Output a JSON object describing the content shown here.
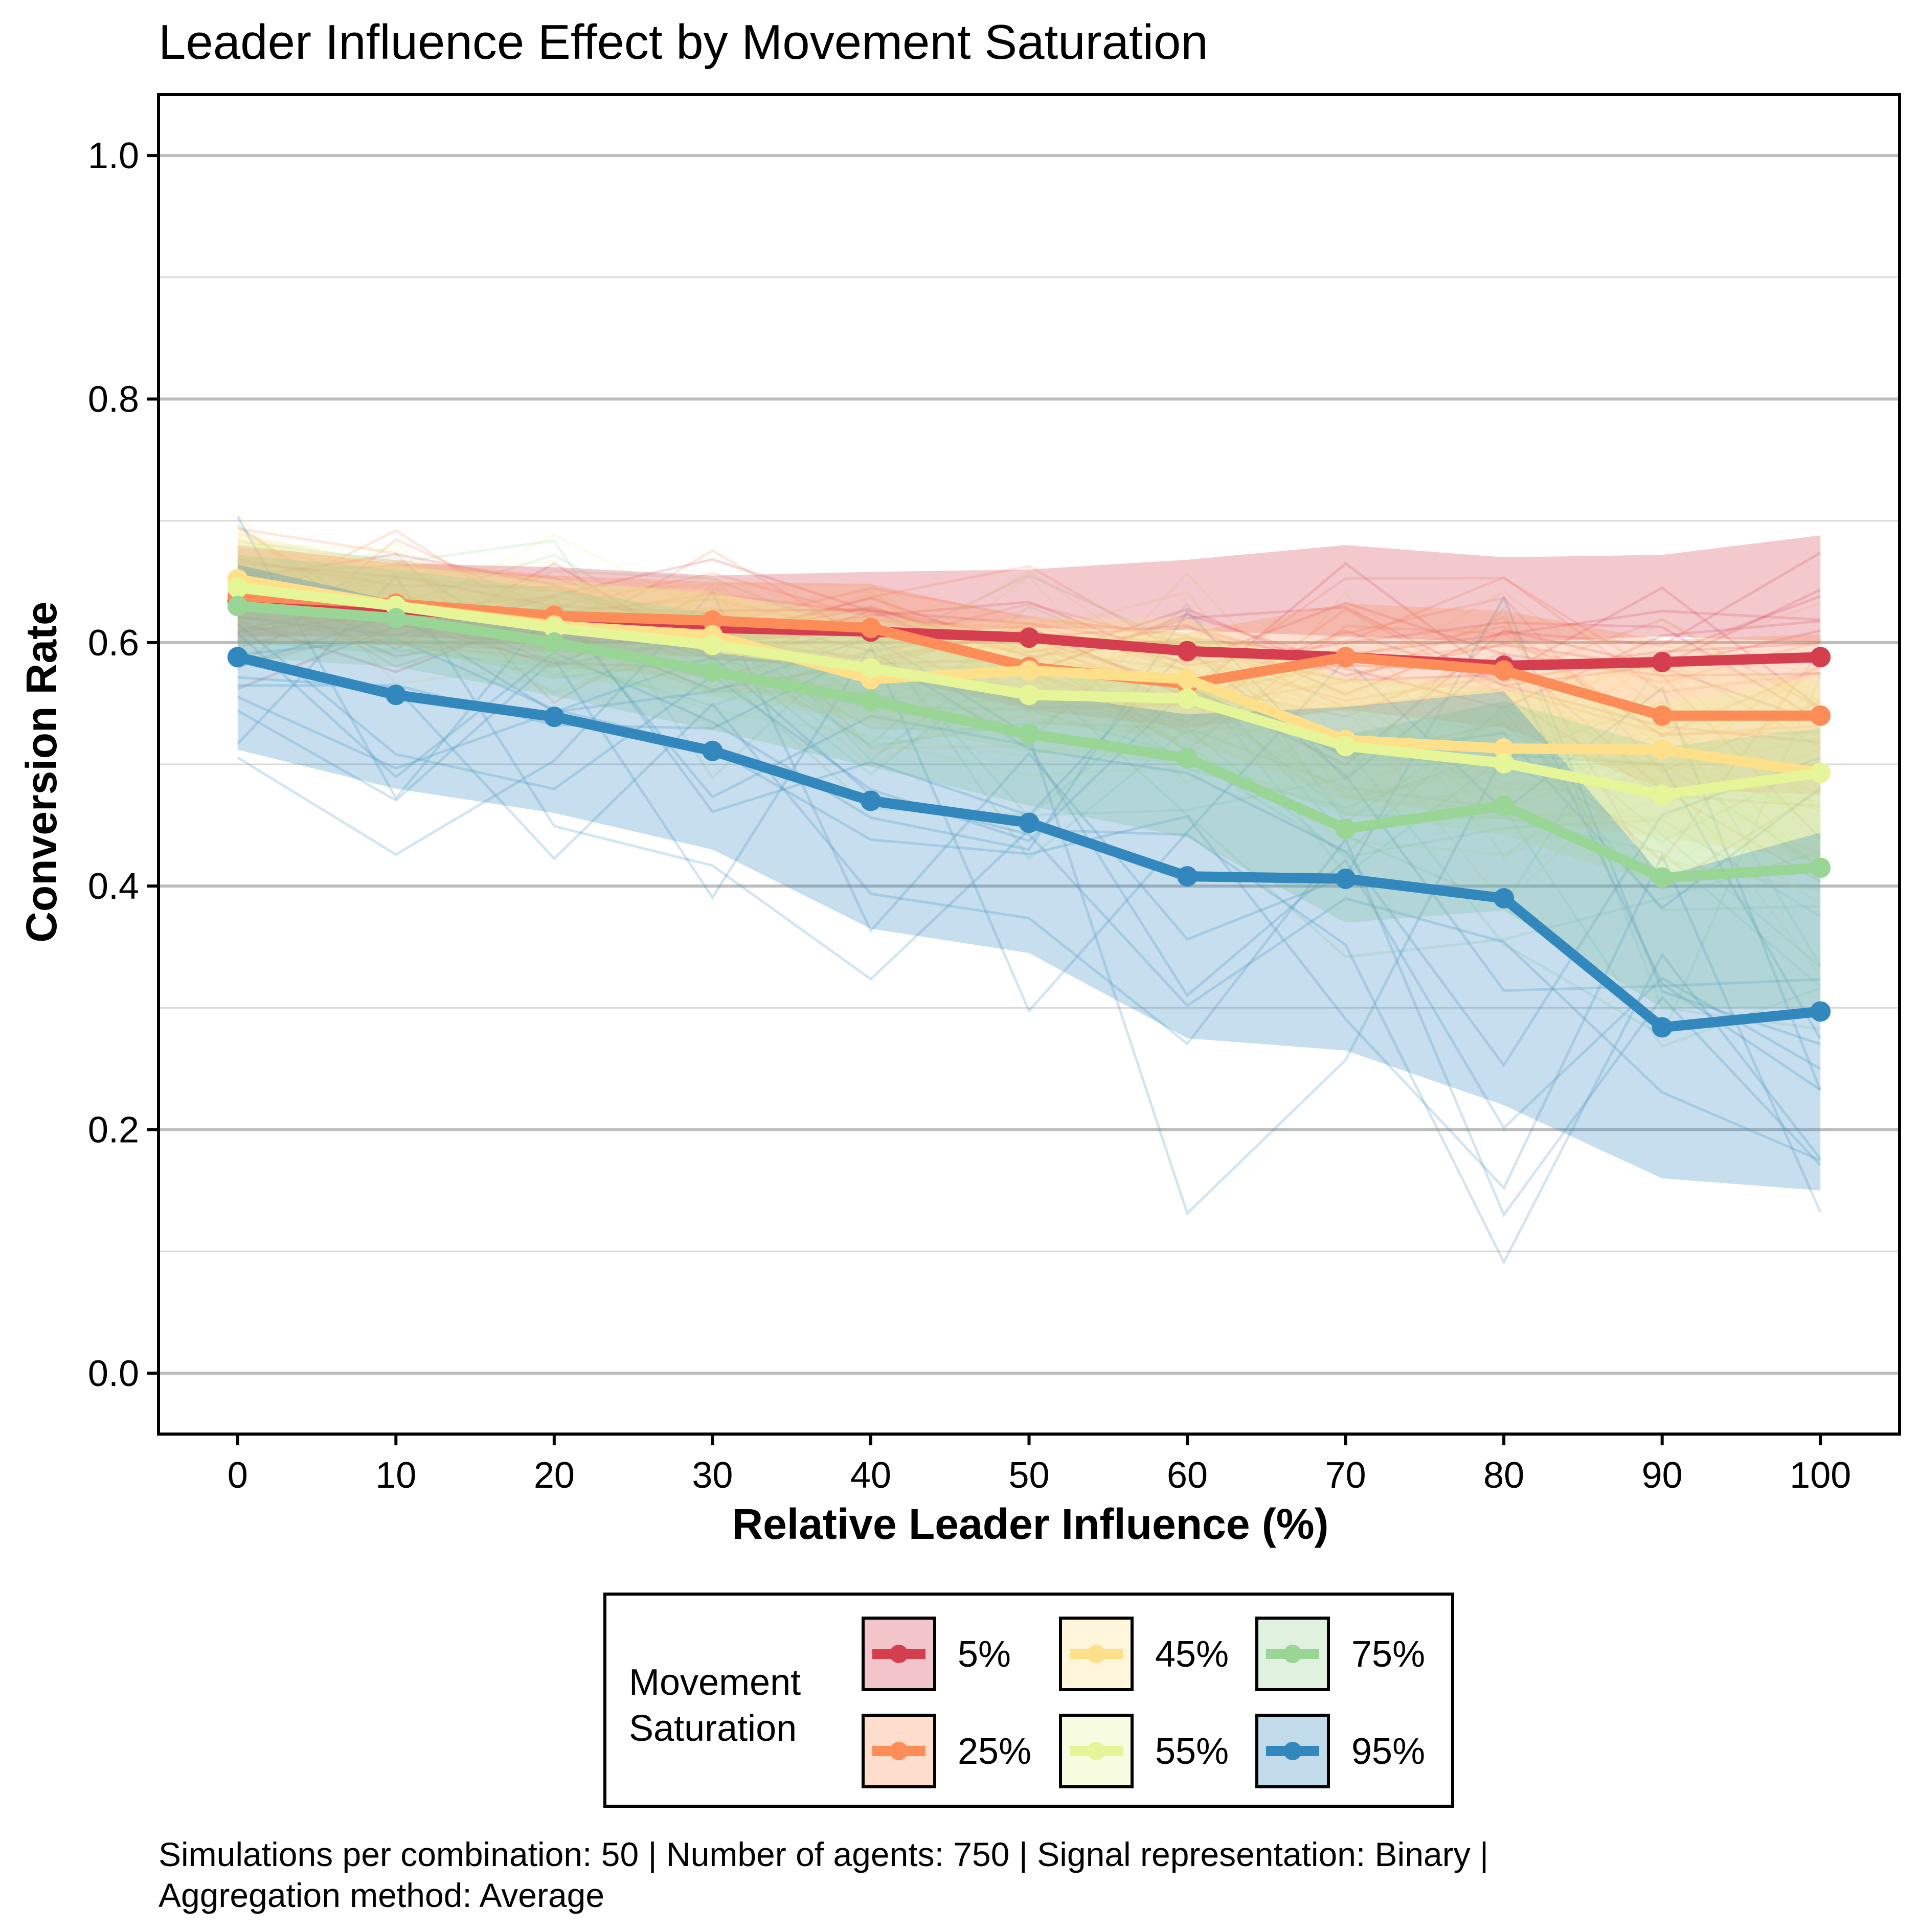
{
  "chart_data": {
    "type": "line",
    "title": "Leader Influence Effect by Movement Saturation",
    "xlabel": "Relative Leader Influence (%)",
    "ylabel": "Conversion Rate",
    "x": [
      0,
      10,
      20,
      30,
      40,
      50,
      60,
      70,
      80,
      90,
      100
    ],
    "xlim": [
      -5,
      105
    ],
    "ylim": [
      -0.05,
      1.05
    ],
    "y_major_ticks": [
      0.0,
      0.2,
      0.4,
      0.6,
      0.8,
      1.0
    ],
    "y_tick_labels": [
      "0.0",
      "0.2",
      "0.4",
      "0.6",
      "0.8",
      "1.0"
    ],
    "y_minor_ticks": [
      0.1,
      0.3,
      0.5,
      0.7,
      0.9
    ],
    "x_tick_labels": [
      "0",
      "10",
      "20",
      "30",
      "40",
      "50",
      "60",
      "70",
      "80",
      "90",
      "100"
    ],
    "grid": "horizontal",
    "legend": {
      "title_lines": [
        "Movement",
        "Saturation"
      ],
      "placement": "bottom"
    },
    "series": [
      {
        "name": "5%",
        "color": "#d53e4f",
        "values": [
          0.634,
          0.628,
          0.616,
          0.612,
          0.609,
          0.604,
          0.593,
          0.588,
          0.581,
          0.584,
          0.588
        ],
        "band_lower": [
          0.605,
          0.605,
          0.6,
          0.6,
          0.608,
          0.612,
          0.61,
          0.605,
          0.6,
          0.605,
          0.6
        ],
        "band_upper": [
          0.68,
          0.665,
          0.662,
          0.655,
          0.658,
          0.66,
          0.668,
          0.68,
          0.67,
          0.672,
          0.688
        ]
      },
      {
        "name": "25%",
        "color": "#fc8d59",
        "values": [
          0.638,
          0.632,
          0.622,
          0.618,
          0.612,
          0.58,
          0.566,
          0.588,
          0.577,
          0.54,
          0.54
        ],
        "band_lower": [
          0.6,
          0.598,
          0.592,
          0.588,
          0.575,
          0.545,
          0.53,
          0.545,
          0.53,
          0.48,
          0.475
        ],
        "band_upper": [
          0.676,
          0.668,
          0.655,
          0.65,
          0.648,
          0.62,
          0.608,
          0.632,
          0.626,
          0.602,
          0.607
        ]
      },
      {
        "name": "45%",
        "color": "#fee08b",
        "values": [
          0.652,
          0.63,
          0.614,
          0.606,
          0.57,
          0.577,
          0.57,
          0.52,
          0.513,
          0.512,
          0.493
        ],
        "band_lower": [
          0.615,
          0.598,
          0.58,
          0.57,
          0.53,
          0.535,
          0.52,
          0.472,
          0.455,
          0.44,
          0.42
        ],
        "band_upper": [
          0.69,
          0.664,
          0.648,
          0.643,
          0.61,
          0.62,
          0.62,
          0.57,
          0.572,
          0.586,
          0.568
        ]
      },
      {
        "name": "55%",
        "color": "#e6f598",
        "values": [
          0.645,
          0.63,
          0.612,
          0.598,
          0.579,
          0.557,
          0.554,
          0.515,
          0.501,
          0.475,
          0.493
        ],
        "band_lower": [
          0.606,
          0.595,
          0.572,
          0.556,
          0.535,
          0.51,
          0.5,
          0.46,
          0.442,
          0.4,
          0.415
        ],
        "band_upper": [
          0.684,
          0.665,
          0.652,
          0.64,
          0.622,
          0.605,
          0.608,
          0.57,
          0.56,
          0.55,
          0.571
        ]
      },
      {
        "name": "75%",
        "color": "#99d594",
        "values": [
          0.63,
          0.62,
          0.6,
          0.576,
          0.552,
          0.525,
          0.505,
          0.447,
          0.466,
          0.407,
          0.415
        ],
        "band_lower": [
          0.588,
          0.58,
          0.556,
          0.528,
          0.498,
          0.466,
          0.44,
          0.37,
          0.38,
          0.3,
          0.3
        ],
        "band_upper": [
          0.672,
          0.66,
          0.644,
          0.624,
          0.606,
          0.584,
          0.57,
          0.524,
          0.552,
          0.514,
          0.53
        ]
      },
      {
        "name": "95%",
        "color": "#3288bd",
        "values": [
          0.588,
          0.557,
          0.539,
          0.511,
          0.47,
          0.452,
          0.408,
          0.406,
          0.39,
          0.284,
          0.297
        ],
        "band_lower": [
          0.512,
          0.48,
          0.46,
          0.43,
          0.365,
          0.345,
          0.275,
          0.265,
          0.22,
          0.16,
          0.15
        ],
        "band_upper": [
          0.664,
          0.634,
          0.618,
          0.592,
          0.575,
          0.559,
          0.541,
          0.547,
          0.56,
          0.408,
          0.444
        ]
      }
    ]
  },
  "caption": {
    "line1": "Simulations per combination: 50  | Number of agents: 750  | Signal representation: Binary |",
    "line2": "Aggregation method: Average"
  }
}
